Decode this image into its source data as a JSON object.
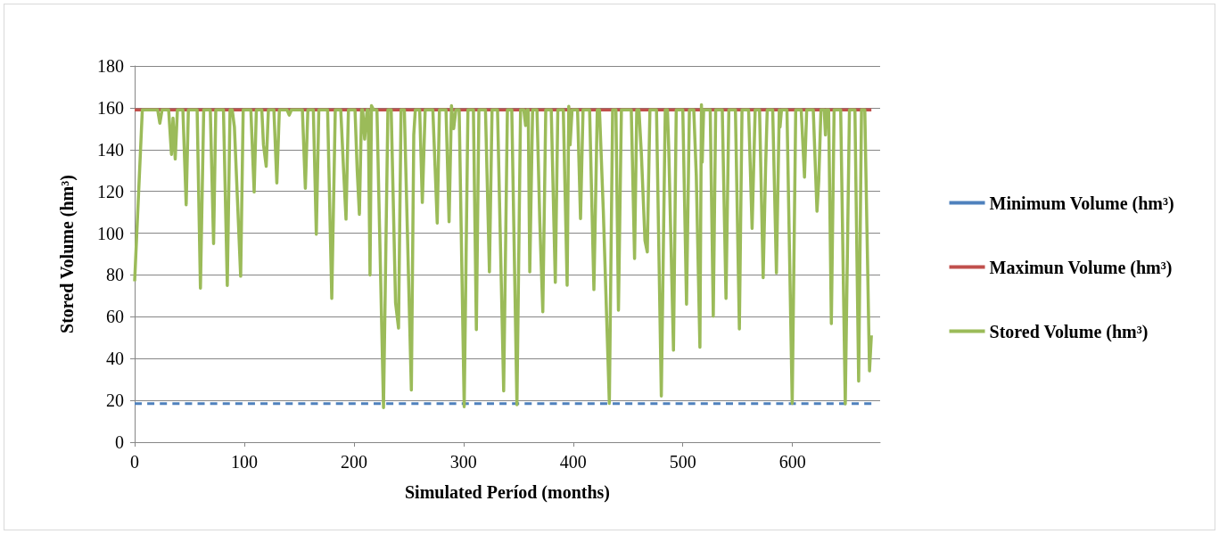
{
  "chart_data": {
    "type": "line",
    "xlabel": "Simulated Períod (months)",
    "ylabel": "Stored Volume (hm³)",
    "xlim": [
      0,
      680
    ],
    "xticks": [
      0,
      100,
      200,
      300,
      400,
      500,
      600
    ],
    "ylim": [
      0,
      180
    ],
    "yticks": [
      0,
      20,
      40,
      60,
      80,
      100,
      120,
      140,
      160,
      180
    ],
    "grid": "y",
    "legend": "right",
    "marker": "none",
    "series": [
      {
        "name": "Minimum Volume (hm³)",
        "color": "#4f81bd",
        "line_style": "dashed",
        "x": [
          0,
          672
        ],
        "values": [
          18.5,
          18.5
        ]
      },
      {
        "name": "Maximun Volume (hm³)",
        "color": "#c0504d",
        "line_style": "solid",
        "x": [
          0,
          672
        ],
        "values": [
          159,
          159
        ]
      },
      {
        "name": "Stored Volume (hm³)",
        "color": "#9bbb59",
        "line_style": "solid",
        "x": [
          0,
          7,
          21,
          23,
          25,
          31,
          33.6,
          35,
          37,
          39,
          44,
          47,
          49,
          57,
          60,
          63,
          69,
          72,
          74,
          81,
          84.5,
          87,
          89,
          91,
          96.7,
          99,
          106,
          109,
          111,
          116,
          117.5,
          120,
          122,
          127,
          129.7,
          132,
          139,
          141,
          143,
          153,
          155.7,
          158,
          163,
          165.7,
          168,
          176,
          179.8,
          183,
          188,
          190.6,
          192.8,
          195,
          201,
          203,
          205,
          207,
          208,
          209.8,
          212,
          213,
          214.7,
          216,
          218,
          221,
          227,
          231,
          234,
          238,
          240.7,
          243,
          246,
          252.4,
          254.6,
          256,
          260,
          262.4,
          265,
          272,
          274,
          276,
          278,
          284,
          286.8,
          289,
          291,
          293,
          296,
          300.6,
          304,
          309,
          311.7,
          314,
          320,
          323.6,
          326,
          331,
          336.6,
          340,
          344,
          348.7,
          352,
          355,
          356.6,
          358,
          359,
          360.4,
          363,
          367,
          369.6,
          372.3,
          375,
          380,
          383.7,
          386,
          391,
          394.5,
          396,
          397.2,
          399,
          404,
          406.7,
          409,
          415,
          418.9,
          422,
          424,
          427.5,
          433,
          436,
          439,
          441.3,
          444,
          453,
          456,
          458,
          460,
          462.2,
          465.5,
          467.6,
          470,
          476,
          480.4,
          484,
          486,
          487.2,
          491.5,
          494,
          500,
          503.4,
          506,
          510,
          512.3,
          515.6,
          517,
          517.7,
          519,
          525,
          527.8,
          530,
          536,
          539.4,
          542,
          548,
          551.6,
          554,
          560,
          563.2,
          566,
          570,
          573.3,
          575.5,
          577,
          582,
          585.4,
          588,
          588.7,
          590,
          595,
          599.8,
          603,
          608,
          611,
          613,
          619,
          622.4,
          624,
          626,
          629,
          630.1,
          631,
          633,
          635.5,
          638,
          644,
          648.2,
          652,
          657,
          660.4,
          663,
          666,
          670.3,
          672
        ],
        "values": [
          77,
          159,
          159,
          152.6,
          159,
          159,
          137.7,
          155,
          135.5,
          159,
          159,
          113.6,
          159,
          159,
          73.7,
          159,
          159,
          95,
          159,
          159,
          75,
          159,
          159,
          150.8,
          79.4,
          159,
          159,
          119.7,
          159,
          159,
          142.3,
          132,
          159,
          159,
          124,
          159,
          159,
          156.5,
          159,
          159,
          121.5,
          159,
          159,
          99.5,
          159,
          159,
          68.8,
          159,
          159,
          130,
          106.7,
          159,
          159,
          130,
          109,
          159,
          159,
          145,
          159,
          159,
          80,
          161,
          159,
          159,
          16.5,
          159,
          159,
          66.6,
          54.6,
          159,
          159,
          25,
          147,
          159,
          159,
          114.7,
          159,
          159,
          132,
          104.8,
          159,
          159,
          105.5,
          161,
          150,
          159,
          159,
          17,
          159,
          159,
          53.9,
          159,
          159,
          81.5,
          159,
          159,
          24.5,
          159,
          159,
          17.9,
          159,
          159,
          151.5,
          159,
          159,
          81.5,
          159,
          159,
          104.8,
          62.4,
          159,
          159,
          76.5,
          159,
          159,
          75.1,
          160.7,
          142.3,
          159,
          159,
          107,
          159,
          159,
          73,
          159,
          159,
          110.5,
          18.6,
          159,
          159,
          63.1,
          159,
          159,
          87.9,
          159,
          159,
          138,
          96.4,
          91,
          159,
          159,
          22.1,
          159,
          159,
          140,
          44,
          159,
          159,
          66,
          159,
          159,
          127.5,
          45.4,
          161.4,
          134,
          159,
          159,
          60.3,
          159,
          159,
          68.8,
          159,
          159,
          54.2,
          159,
          159,
          102.3,
          159,
          159,
          78.7,
          131,
          159,
          159,
          81,
          159,
          150.8,
          159,
          159,
          18.6,
          159,
          159,
          126.8,
          159,
          159,
          110.5,
          125,
          159,
          159,
          147,
          159,
          159,
          56.7,
          159,
          159,
          18.3,
          159,
          159,
          29.2,
          159,
          159,
          34.1,
          51.1
        ]
      }
    ]
  }
}
